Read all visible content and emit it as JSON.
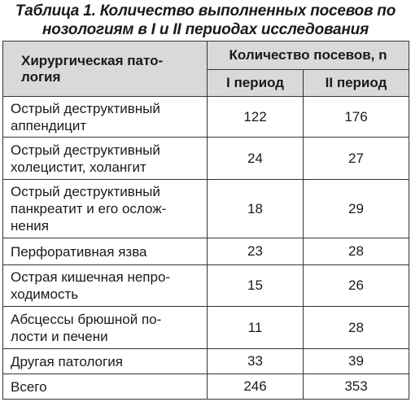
{
  "caption": {
    "line1": "Таблица 1. Количество выполненных посевов по",
    "line2": "нозологиям в I и II периодах исследования"
  },
  "header": {
    "pathology_line1": "Хирургическая пато-",
    "pathology_line2": "логия",
    "count": "Количество посевов, n",
    "period1": "I период",
    "period2": "II период"
  },
  "rows": [
    {
      "name_lines": [
        "Острый деструктивный",
        "аппендицит"
      ],
      "p1": "122",
      "p2": "176"
    },
    {
      "name_lines": [
        "Острый деструктивный",
        "холецистит, холангит"
      ],
      "p1": "24",
      "p2": "27"
    },
    {
      "name_lines": [
        "Острый деструктивный",
        "панкреатит и его ослож-",
        "нения"
      ],
      "p1": "18",
      "p2": "29"
    },
    {
      "name_lines": [
        "Перфоративная язва"
      ],
      "p1": "23",
      "p2": "28"
    },
    {
      "name_lines": [
        "Острая кишечная непро-",
        "ходимость"
      ],
      "p1": "15",
      "p2": "26"
    },
    {
      "name_lines": [
        "Абсцессы брюшной по-",
        "лости и печени"
      ],
      "p1": "11",
      "p2": "28"
    },
    {
      "name_lines": [
        "Другая патология"
      ],
      "p1": "33",
      "p2": "39"
    },
    {
      "name_lines": [
        "Всего"
      ],
      "p1": "246",
      "p2": "353"
    }
  ]
}
